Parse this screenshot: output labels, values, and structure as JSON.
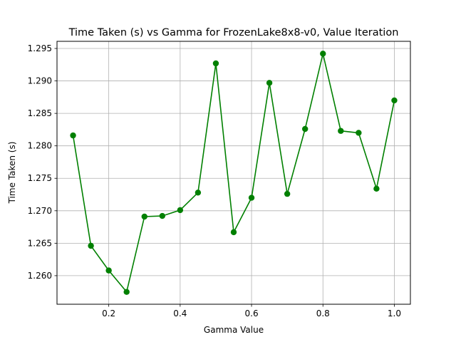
{
  "chart_data": {
    "type": "line",
    "title": "Time Taken (s) vs Gamma for FrozenLake8x8-v0, Value Iteration",
    "xlabel": "Gamma Value",
    "ylabel": "Time Taken (s)",
    "xlim": [
      0.055,
      1.045
    ],
    "ylim": [
      1.2556,
      1.2961
    ],
    "xticks": [
      0.2,
      0.4,
      0.6,
      0.8,
      1.0
    ],
    "xtick_labels": [
      "0.2",
      "0.4",
      "0.6",
      "0.8",
      "1.0"
    ],
    "yticks": [
      1.26,
      1.265,
      1.27,
      1.275,
      1.28,
      1.285,
      1.29,
      1.295
    ],
    "ytick_labels": [
      "1.260",
      "1.265",
      "1.270",
      "1.275",
      "1.280",
      "1.285",
      "1.290",
      "1.295"
    ],
    "grid": true,
    "color": "#008000",
    "series": [
      {
        "x": [
          0.1,
          0.15,
          0.2,
          0.25,
          0.3,
          0.35,
          0.4,
          0.45,
          0.5,
          0.55,
          0.6,
          0.65,
          0.7,
          0.75,
          0.8,
          0.85,
          0.9,
          0.95,
          1.0
        ],
        "y": [
          1.2816,
          1.2646,
          1.2608,
          1.2575,
          1.2691,
          1.2692,
          1.2701,
          1.2728,
          1.2927,
          1.2667,
          1.272,
          1.2897,
          1.2726,
          1.2826,
          1.2942,
          1.2823,
          1.282,
          1.2734,
          1.287
        ]
      }
    ]
  }
}
